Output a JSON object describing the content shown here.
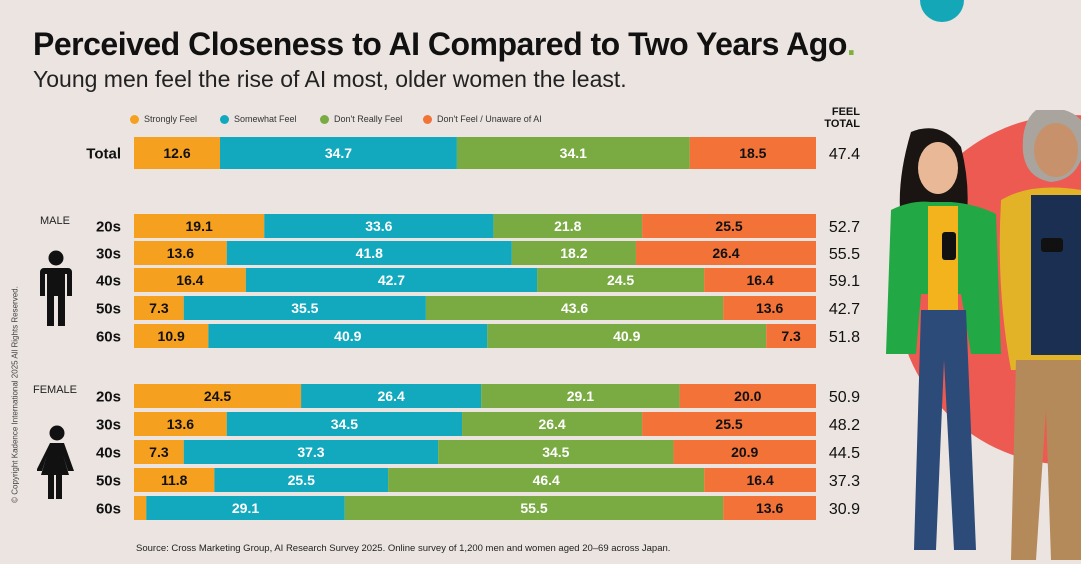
{
  "title": "Perceived Closeness to AI Compared to Two Years Ago",
  "title_dot": ".",
  "subtitle": "Young men feel the rise of AI most, older women the least.",
  "legend": [
    "Strongly Feel",
    "Somewhat Feel",
    "Don't Really Feel",
    "Don't Feel / Unaware of AI"
  ],
  "feel_total_header": [
    "FEEL",
    "TOTAL"
  ],
  "group_labels": {
    "male": "MALE",
    "female": "FEMALE"
  },
  "copyright": "© Copyright Kadence International 2025 All Rights Reserved.",
  "source": "Source: Cross Marketing Group, AI Research Survey 2025. Online survey of 1,200 men and women aged 20–69 across Japan.",
  "colors": {
    "strongly": "#f6a020",
    "somewhat": "#12a9be",
    "dont_really": "#7aab43",
    "dont_feel": "#f27238",
    "accent": "#7fb13a"
  },
  "chart_data": {
    "type": "bar",
    "orientation": "horizontal",
    "stacked": true,
    "title": "Perceived Closeness to AI Compared to Two Years Ago",
    "series_names": [
      "Strongly Feel",
      "Somewhat Feel",
      "Don't Really Feel",
      "Don't Feel / Unaware of AI"
    ],
    "rows": [
      {
        "group": "Total",
        "label": "Total",
        "values": [
          12.6,
          34.7,
          34.1,
          18.5
        ],
        "feel_total": "47.4"
      },
      {
        "group": "MALE",
        "label": "20s",
        "values": [
          19.1,
          33.6,
          21.8,
          25.5
        ],
        "feel_total": "52.7"
      },
      {
        "group": "MALE",
        "label": "30s",
        "values": [
          13.6,
          41.8,
          18.2,
          26.4
        ],
        "feel_total": "55.5"
      },
      {
        "group": "MALE",
        "label": "40s",
        "values": [
          16.4,
          42.7,
          24.5,
          16.4
        ],
        "feel_total": "59.1"
      },
      {
        "group": "MALE",
        "label": "50s",
        "values": [
          7.3,
          35.5,
          43.6,
          13.6
        ],
        "feel_total": "42.7"
      },
      {
        "group": "MALE",
        "label": "60s",
        "values": [
          10.9,
          40.9,
          40.9,
          7.3
        ],
        "feel_total": "51.8"
      },
      {
        "group": "FEMALE",
        "label": "20s",
        "values": [
          24.5,
          26.4,
          29.1,
          20.0
        ],
        "feel_total": "50.9"
      },
      {
        "group": "FEMALE",
        "label": "30s",
        "values": [
          13.6,
          34.5,
          26.4,
          25.5
        ],
        "feel_total": "48.2"
      },
      {
        "group": "FEMALE",
        "label": "40s",
        "values": [
          7.3,
          37.3,
          34.5,
          20.9
        ],
        "feel_total": "44.5"
      },
      {
        "group": "FEMALE",
        "label": "50s",
        "values": [
          11.8,
          25.5,
          46.4,
          16.4
        ],
        "feel_total": "37.3"
      },
      {
        "group": "FEMALE",
        "label": "60s",
        "values": [
          1.8,
          29.1,
          55.5,
          13.6
        ],
        "feel_total": "30.9"
      }
    ],
    "value_labels": [
      [
        "12.6",
        "34.7",
        "34.1",
        "18.5"
      ],
      [
        "19.1",
        "33.6",
        "21.8",
        "25.5"
      ],
      [
        "13.6",
        "41.8",
        "18.2",
        "26.4"
      ],
      [
        "16.4",
        "42.7",
        "24.5",
        "16.4"
      ],
      [
        "7.3",
        "35.5",
        "43.6",
        "13.6"
      ],
      [
        "10.9",
        "40.9",
        "40.9",
        "7.3"
      ],
      [
        "24.5",
        "26.4",
        "29.1",
        "20.0"
      ],
      [
        "13.6",
        "34.5",
        "26.4",
        "25.5"
      ],
      [
        "7.3",
        "37.3",
        "34.5",
        "20.9"
      ],
      [
        "11.8",
        "25.5",
        "46.4",
        "16.4"
      ],
      [
        "",
        "29.1",
        "55.5",
        "13.6"
      ]
    ],
    "xlim": [
      0,
      100
    ]
  }
}
